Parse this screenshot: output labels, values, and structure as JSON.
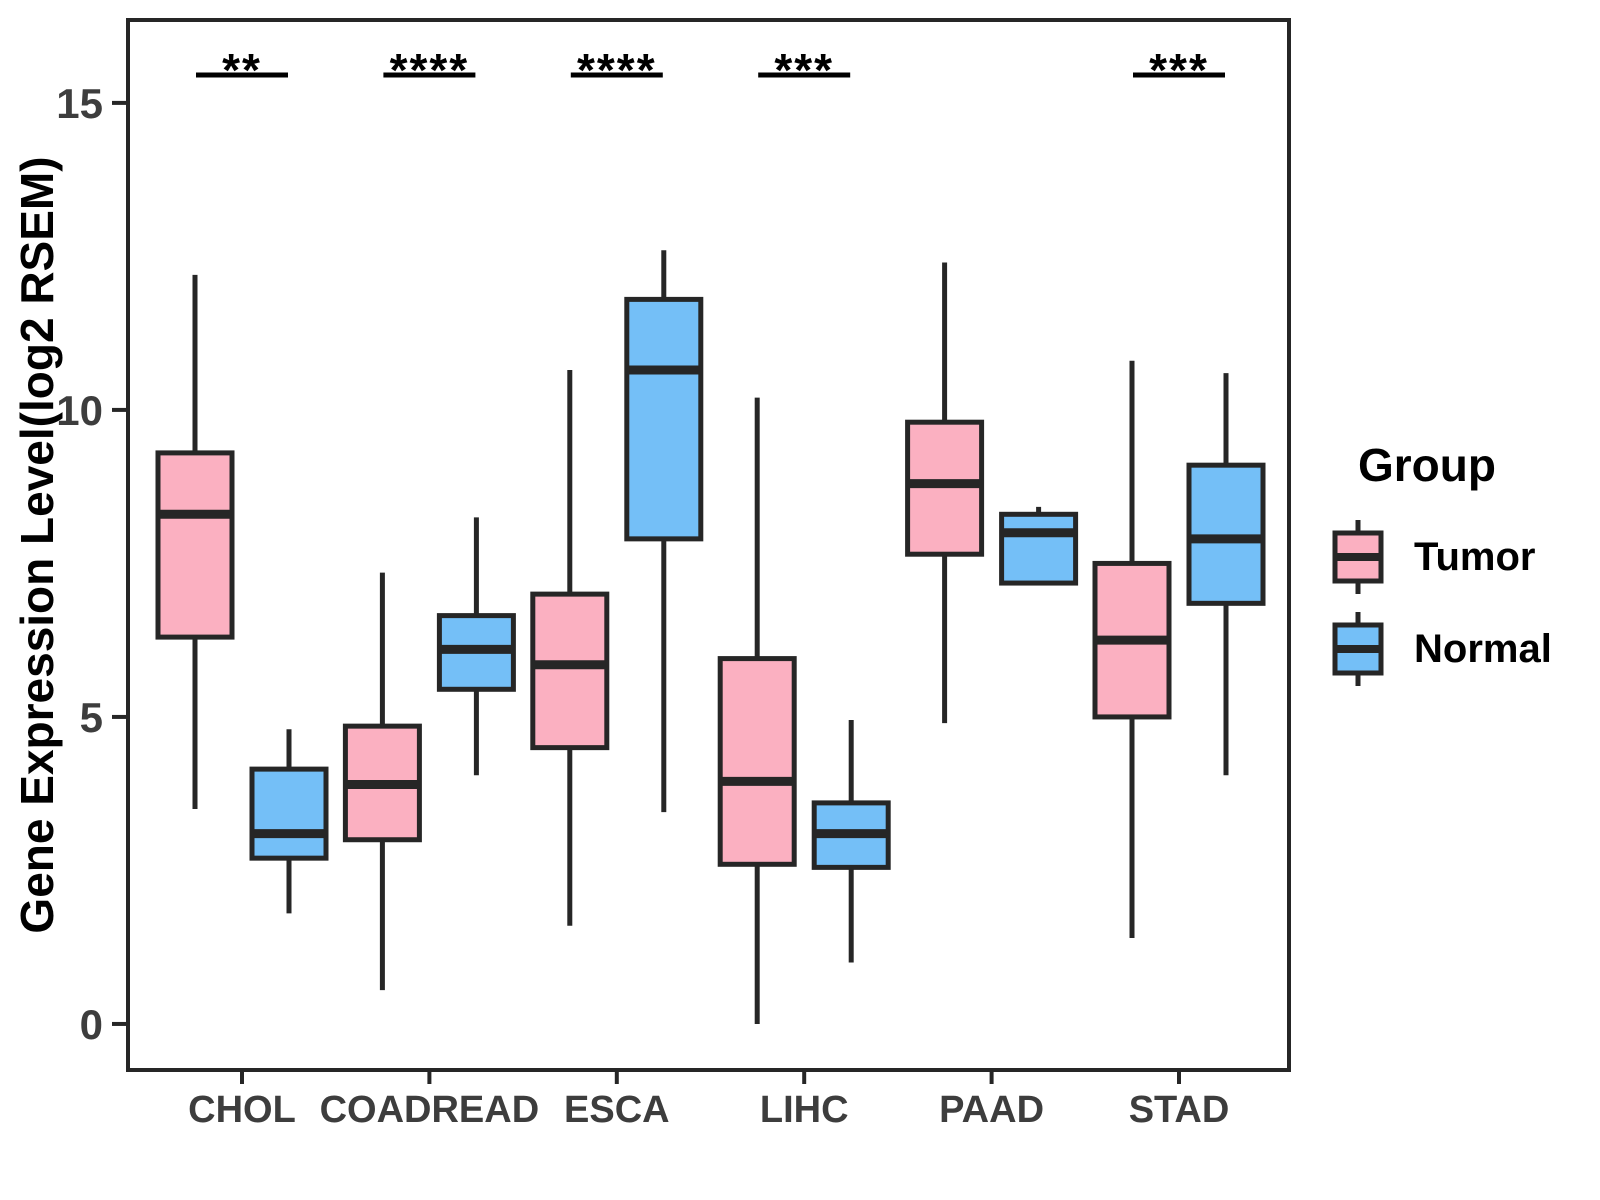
{
  "figure": {
    "ylabel": "Gene Expression Level(log2 RSEM)"
  },
  "legend": {
    "title": "Group",
    "entries": [
      {
        "label": "Tumor",
        "color": "#FBB0C1"
      },
      {
        "label": "Normal",
        "color": "#74BFF7"
      }
    ]
  },
  "colors": {
    "stroke": "#262626",
    "tick_text": "#3d3d3d",
    "tumor": "#FBB0C1",
    "normal": "#74BFF7"
  },
  "chart_data": {
    "type": "grouped_boxplot",
    "title": "",
    "xlabel": "",
    "ylabel": "Gene Expression Level(log2 RSEM)",
    "categories": [
      "CHOL",
      "COADREAD",
      "ESCA",
      "LIHC",
      "PAAD",
      "STAD"
    ],
    "yticks": [
      0,
      5,
      10,
      15
    ],
    "ylim": [
      -0.75,
      16.35
    ],
    "grid": false,
    "legend_position": "right",
    "series": [
      {
        "name": "Tumor",
        "color": "#FBB0C1",
        "boxes": [
          {
            "min": 3.5,
            "q1": 6.3,
            "median": 8.3,
            "q3": 9.3,
            "max": 12.2
          },
          {
            "min": 0.55,
            "q1": 3.0,
            "median": 3.9,
            "q3": 4.85,
            "max": 7.35
          },
          {
            "min": 1.6,
            "q1": 4.5,
            "median": 5.85,
            "q3": 7.0,
            "max": 10.65
          },
          {
            "min": 0.0,
            "q1": 2.6,
            "median": 3.95,
            "q3": 5.95,
            "max": 10.2
          },
          {
            "min": 4.9,
            "q1": 7.65,
            "median": 8.8,
            "q3": 9.8,
            "max": 12.4
          },
          {
            "min": 1.4,
            "q1": 5.0,
            "median": 6.25,
            "q3": 7.5,
            "max": 10.8
          }
        ]
      },
      {
        "name": "Normal",
        "color": "#74BFF7",
        "boxes": [
          {
            "min": 1.8,
            "q1": 2.7,
            "median": 3.1,
            "q3": 4.15,
            "max": 4.8
          },
          {
            "min": 4.05,
            "q1": 5.45,
            "median": 6.1,
            "q3": 6.65,
            "max": 8.25
          },
          {
            "min": 3.45,
            "q1": 7.9,
            "median": 10.65,
            "q3": 11.8,
            "max": 12.6
          },
          {
            "min": 1.0,
            "q1": 2.55,
            "median": 3.1,
            "q3": 3.6,
            "max": 4.95
          },
          {
            "min": 7.18,
            "q1": 7.18,
            "median": 8.0,
            "q3": 8.3,
            "max": 8.42
          },
          {
            "min": 4.05,
            "q1": 6.85,
            "median": 7.9,
            "q3": 9.1,
            "max": 10.6
          }
        ]
      }
    ],
    "significance": [
      "**",
      "****",
      "****",
      "***",
      "",
      "***"
    ]
  }
}
